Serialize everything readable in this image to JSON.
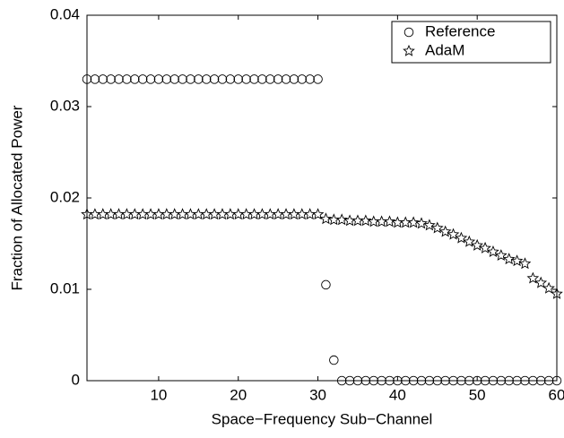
{
  "chart_data": {
    "type": "scatter",
    "xlabel": "Space−Frequency Sub−Channel",
    "ylabel": "Fraction of Allocated Power",
    "x": [
      1,
      2,
      3,
      4,
      5,
      6,
      7,
      8,
      9,
      10,
      11,
      12,
      13,
      14,
      15,
      16,
      17,
      18,
      19,
      20,
      21,
      22,
      23,
      24,
      25,
      26,
      27,
      28,
      29,
      30,
      31,
      32,
      33,
      34,
      35,
      36,
      37,
      38,
      39,
      40,
      41,
      42,
      43,
      44,
      45,
      46,
      47,
      48,
      49,
      50,
      51,
      52,
      53,
      54,
      55,
      56,
      57,
      58,
      59,
      60
    ],
    "series": [
      {
        "name": "Reference",
        "color": "#000000",
        "marker": "circle",
        "values": [
          0.033,
          0.033,
          0.033,
          0.033,
          0.033,
          0.033,
          0.033,
          0.033,
          0.033,
          0.033,
          0.033,
          0.033,
          0.033,
          0.033,
          0.033,
          0.033,
          0.033,
          0.033,
          0.033,
          0.033,
          0.033,
          0.033,
          0.033,
          0.033,
          0.033,
          0.033,
          0.033,
          0.033,
          0.033,
          0.033,
          0.0105,
          0.00225,
          0,
          0,
          0,
          0,
          0,
          0,
          0,
          0,
          0,
          0,
          0,
          0,
          0,
          0,
          0,
          0,
          0,
          0,
          0,
          0,
          0,
          0,
          0,
          0,
          0,
          0,
          0,
          0
        ]
      },
      {
        "name": "AdaM",
        "color": "#000000",
        "marker": "star",
        "values": [
          0.0182,
          0.0182,
          0.0182,
          0.0182,
          0.0182,
          0.0182,
          0.0182,
          0.0182,
          0.0182,
          0.0182,
          0.0182,
          0.0182,
          0.0182,
          0.0182,
          0.0182,
          0.0182,
          0.0182,
          0.0182,
          0.0182,
          0.0182,
          0.0182,
          0.0182,
          0.0182,
          0.0182,
          0.0182,
          0.0182,
          0.0182,
          0.0182,
          0.0182,
          0.0182,
          0.0177,
          0.0176,
          0.0176,
          0.0175,
          0.0175,
          0.0175,
          0.0174,
          0.0174,
          0.0174,
          0.0173,
          0.0173,
          0.0173,
          0.0172,
          0.017,
          0.0167,
          0.0163,
          0.016,
          0.0156,
          0.0152,
          0.0148,
          0.0145,
          0.0141,
          0.0137,
          0.0133,
          0.0131,
          0.0128,
          0.0112,
          0.0107,
          0.0101,
          0.0095
        ]
      }
    ],
    "xlim": [
      1,
      60
    ],
    "ylim": [
      0,
      0.04
    ],
    "xticks": [
      10,
      20,
      30,
      40,
      50,
      60
    ],
    "yticks": [
      0,
      0.01,
      0.02,
      0.03,
      0.04
    ],
    "legend": "upper right"
  }
}
